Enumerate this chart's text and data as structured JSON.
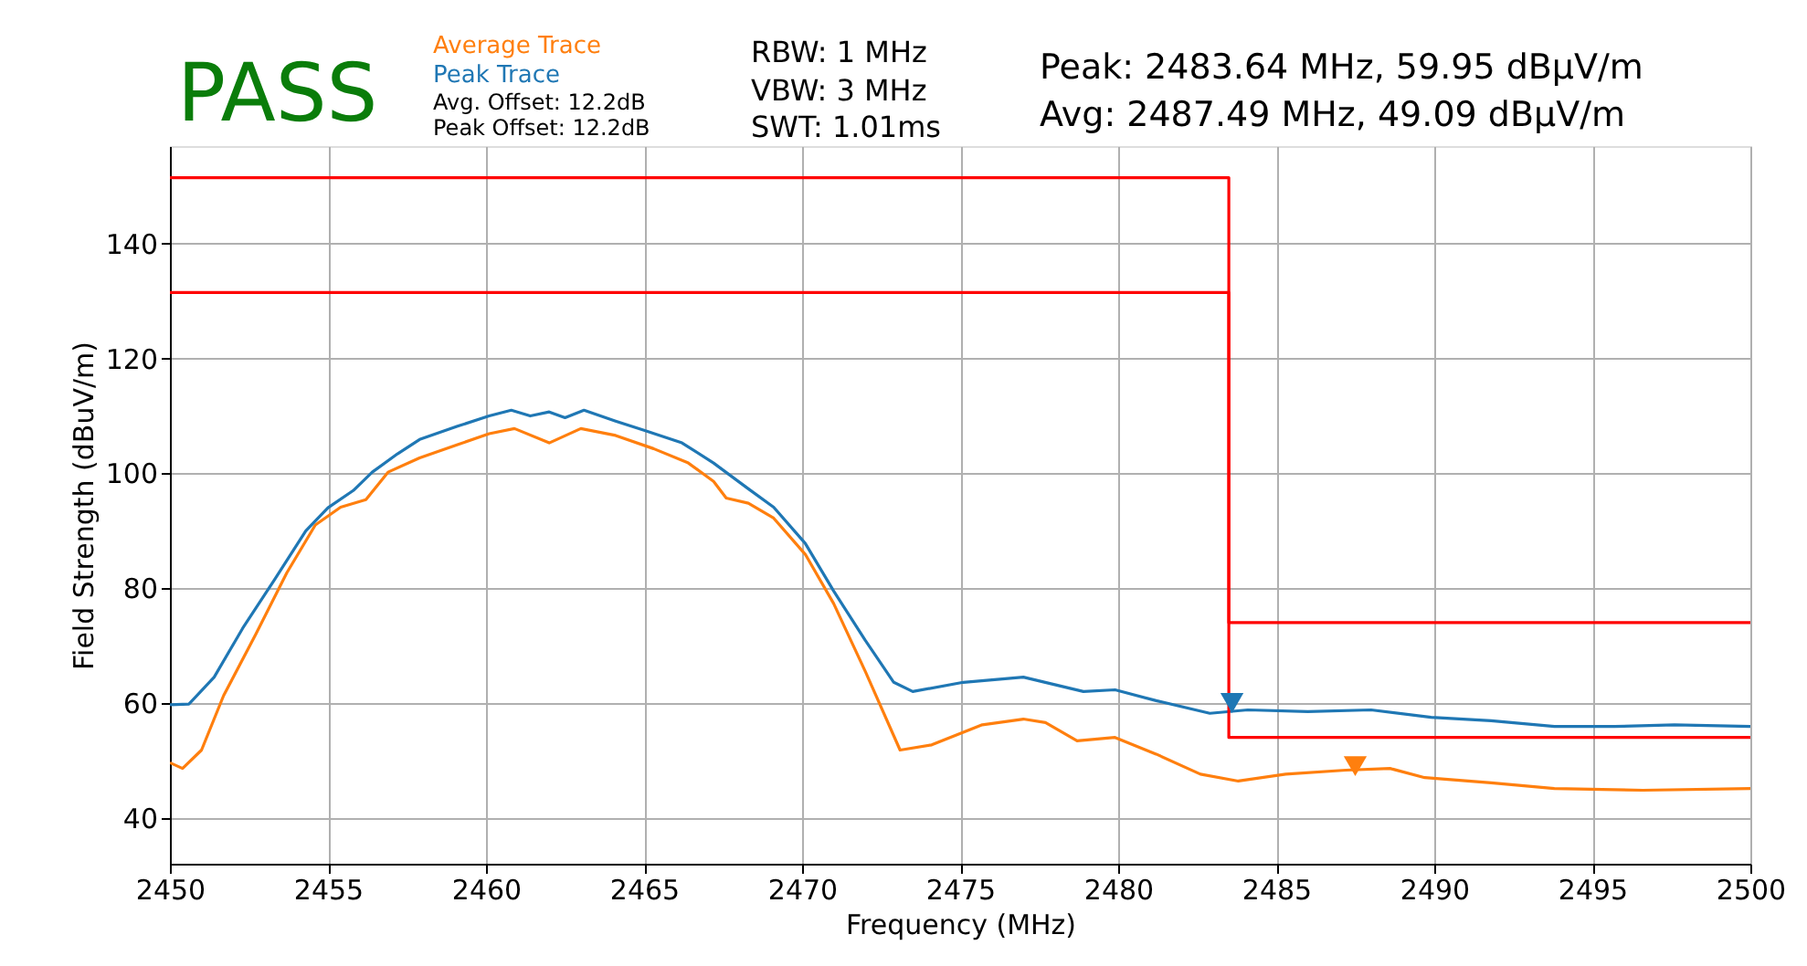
{
  "chart_data": {
    "type": "line",
    "xlabel": "Frequency (MHz)",
    "ylabel": "Field Strength (dBuV/m)",
    "xlim": [
      2450,
      2500
    ],
    "xticks": [
      2450,
      2455,
      2460,
      2465,
      2470,
      2475,
      2480,
      2485,
      2490,
      2495,
      2500
    ],
    "ylim": [
      32,
      157
    ],
    "yticks": [
      40,
      60,
      80,
      100,
      120,
      140
    ],
    "grid": true,
    "legend": "top left",
    "line_style": "solid",
    "series": [
      {
        "name": "Average Trace",
        "color": "#ff7f0e",
        "x": [
          2450,
          2450.4,
          2451,
          2451.7,
          2452.7,
          2453.7,
          2454.6,
          2455.4,
          2456.2,
          2456.9,
          2457.9,
          2459.1,
          2460.1,
          2460.9,
          2462,
          2463,
          2464.1,
          2465.3,
          2466.4,
          2467.2,
          2467.6,
          2468.3,
          2469.1,
          2470.1,
          2471,
          2472,
          2473.1,
          2474.1,
          2475.7,
          2477,
          2477.7,
          2478.7,
          2479.9,
          2481.2,
          2482.6,
          2483.8,
          2485.3,
          2487.2,
          2488.6,
          2489.7,
          2491.8,
          2493.8,
          2496.6,
          2500
        ],
        "values": [
          49.6,
          48.6,
          51.8,
          61.3,
          71.8,
          82.7,
          91,
          94.1,
          95.4,
          100.2,
          102.7,
          105,
          106.9,
          107.8,
          105.3,
          107.8,
          106.6,
          104.3,
          101.8,
          98.6,
          95.7,
          94.8,
          92.2,
          85.9,
          77.3,
          65.5,
          51.8,
          52.7,
          56.2,
          57.2,
          56.6,
          53.4,
          54,
          51.1,
          47.6,
          46.4,
          47.6,
          48.3,
          48.6,
          47,
          46.1,
          45.1,
          44.8,
          45.1
        ]
      },
      {
        "name": "Peak Trace",
        "color": "#1f77b4",
        "x": [
          2450,
          2450.6,
          2451.4,
          2452.3,
          2453.3,
          2454.3,
          2455,
          2455.8,
          2456.4,
          2457.2,
          2457.9,
          2459.1,
          2460.1,
          2460.8,
          2461.4,
          2462,
          2462.5,
          2463.1,
          2464.1,
          2465,
          2466.2,
          2467.2,
          2468.3,
          2469.1,
          2470.1,
          2471,
          2472,
          2472.9,
          2473.5,
          2475.1,
          2477,
          2478.9,
          2479.9,
          2481.2,
          2482.9,
          2484.1,
          2486,
          2488,
          2489.9,
          2491.8,
          2493.8,
          2495.7,
          2497.6,
          2500
        ],
        "values": [
          59.7,
          59.8,
          64.5,
          73,
          81.4,
          90,
          94,
          97,
          100.2,
          103.4,
          105.9,
          108.2,
          110,
          111,
          110,
          110.7,
          109.7,
          111,
          109.1,
          107.5,
          105.3,
          101.8,
          97.3,
          94.1,
          87.8,
          79.5,
          70.9,
          63.6,
          62,
          63.6,
          64.5,
          62,
          62.3,
          60.4,
          58.2,
          58.8,
          58.5,
          58.8,
          57.5,
          56.9,
          55.9,
          55.9,
          56.2,
          55.9
        ]
      },
      {
        "color": "#ff0000",
        "x": [
          2450,
          2483.5,
          2483.5,
          2500
        ],
        "values": [
          151.5,
          151.5,
          74,
          74
        ]
      },
      {
        "color": "#ff0000",
        "x": [
          2450,
          2483.5,
          2483.5,
          2500
        ],
        "values": [
          131.5,
          131.5,
          54,
          54
        ]
      },
      {
        "type": "scatter",
        "marker": "triangle",
        "color": "#1f77b4",
        "x": [
          2483.6
        ],
        "values": [
          60
        ]
      },
      {
        "type": "scatter",
        "marker": "triangle",
        "color": "#ff7f0e",
        "x": [
          2487.5
        ],
        "values": [
          49
        ]
      }
    ],
    "annotations": [
      "PASS",
      "Avg. Offset: 12.2dB",
      "Peak Offset: 12.2dB",
      "RBW: 1 MHz",
      "VBW: 3 MHz",
      "SWT: 1.01ms",
      "Peak: 2483.64 MHz, 59.95 dBµV/m",
      "Avg: 2487.49 MHz, 49.09 dBµV/m"
    ]
  }
}
